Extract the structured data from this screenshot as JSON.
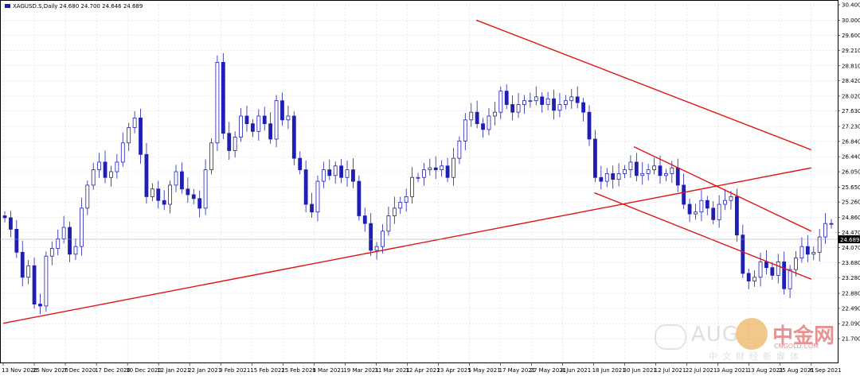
{
  "header": {
    "symbol_info": "XAGUSD.S,Daily  24.680 24.700 24.646 24.689"
  },
  "colors": {
    "candle": "#1f1fb4",
    "trendline": "#e11414",
    "grid": "#d8d8d8",
    "price_tag_bg": "#000000",
    "price_tag_text": "#ffffff",
    "wm_red": "#d23b3b",
    "wm_orange": "#e89a2c"
  },
  "watermark": {
    "latin": "AUG",
    "cn_big": "中金网",
    "domain": "CNGOLD.COM",
    "cn_small": "中文财经新媒体",
    "wechat_icon": "wechat-icon",
    "logo_icon": "gold-coin-icon"
  },
  "chart_data": {
    "type": "candlestick",
    "title": "XAGUSD.S,Daily",
    "ohlc_header": "24.680 24.700 24.646 24.689",
    "ylim": [
      21.7,
      30.4
    ],
    "y_ticks": [
      "30.400",
      "30.000",
      "29.600",
      "29.210",
      "28.810",
      "28.420",
      "28.020",
      "27.630",
      "27.230",
      "26.840",
      "26.440",
      "26.050",
      "25.650",
      "25.260",
      "24.860",
      "24.470",
      "24.070",
      "23.680",
      "23.280",
      "22.880",
      "22.490",
      "22.090",
      "21.700"
    ],
    "x_ticks": [
      "13 Nov 2020",
      "25 Nov 2020",
      "7 Dec 2020",
      "17 Dec 2020",
      "30 Dec 2020",
      "12 Jan 2021",
      "22 Jan 2021",
      "3 Feb 2021",
      "15 Feb 2021",
      "25 Feb 2021",
      "9 Mar 2021",
      "19 Mar 2021",
      "31 Mar 2021",
      "12 Apr 2021",
      "23 Apr 2021",
      "5 May 2021",
      "17 May 2021",
      "27 May 2021",
      "8 Jun 2021",
      "18 Jun 2021",
      "30 Jun 2021",
      "12 Jul 2021",
      "22 Jul 2021",
      "3 Aug 2021",
      "13 Aug 2021",
      "25 Aug 2021",
      "6 Sep 2021"
    ],
    "current_price": "24.689",
    "trendlines": [
      {
        "name": "upper-resistance",
        "from": [
          24,
          30.0
        ],
        "to": [
          41,
          26.62
        ]
      },
      {
        "name": "lower-support",
        "from": [
          0,
          22.1
        ],
        "to": [
          41,
          26.15
        ]
      },
      {
        "name": "channel-upper",
        "from": [
          32,
          26.7
        ],
        "to": [
          41,
          24.5
        ]
      },
      {
        "name": "channel-lower",
        "from": [
          30,
          25.5
        ],
        "to": [
          41,
          23.25
        ]
      }
    ],
    "closes": [
      24.85,
      24.55,
      23.95,
      23.3,
      23.6,
      22.6,
      22.55,
      23.85,
      24.05,
      24.3,
      24.6,
      23.9,
      24.1,
      25.1,
      25.7,
      26.1,
      26.3,
      25.9,
      26.05,
      26.3,
      26.8,
      27.2,
      27.45,
      26.5,
      25.4,
      25.6,
      25.3,
      25.2,
      25.7,
      26.05,
      25.6,
      25.45,
      25.35,
      25.1,
      26.1,
      26.8,
      28.9,
      27.05,
      26.6,
      26.95,
      27.5,
      27.3,
      27.1,
      27.5,
      27.3,
      26.9,
      27.9,
      27.4,
      27.5,
      26.4,
      26.1,
      25.2,
      25.0,
      25.8,
      26.1,
      25.95,
      26.2,
      25.9,
      26.1,
      25.8,
      24.9,
      24.7,
      24.0,
      24.1,
      24.5,
      24.9,
      25.1,
      25.25,
      25.4,
      25.9,
      25.9,
      26.1,
      26.15,
      26.1,
      26.2,
      25.9,
      26.4,
      26.85,
      27.4,
      27.6,
      27.3,
      27.15,
      27.5,
      27.6,
      28.15,
      27.8,
      27.6,
      27.8,
      27.9,
      27.9,
      28.0,
      27.8,
      27.95,
      27.65,
      27.8,
      27.9,
      28.0,
      27.85,
      27.6,
      26.9,
      25.9,
      25.8,
      26.0,
      25.85,
      26.0,
      26.1,
      26.3,
      25.95,
      26.0,
      26.1,
      26.2,
      25.95,
      26.0,
      26.15,
      25.7,
      25.2,
      24.95,
      25.0,
      25.3,
      25.1,
      24.8,
      25.2,
      25.3,
      25.4,
      24.4,
      23.4,
      23.2,
      23.3,
      23.7,
      23.55,
      23.35,
      23.7,
      23.0,
      23.5,
      23.8,
      24.1,
      23.9,
      23.95,
      24.35,
      24.7,
      24.689
    ]
  }
}
